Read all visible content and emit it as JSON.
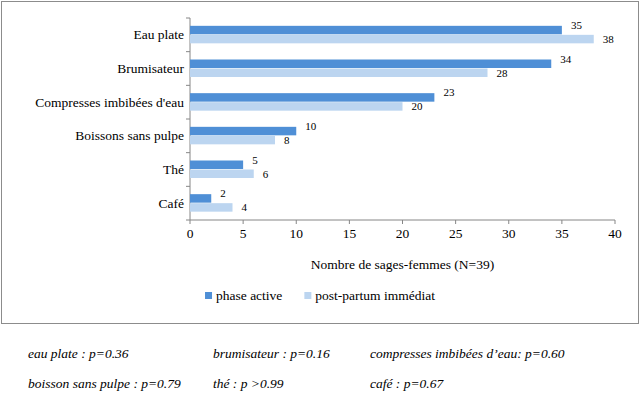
{
  "chart_data": {
    "type": "bar",
    "orientation": "horizontal",
    "x_label": "Nombre de sages-femmes (N=39)",
    "categories": [
      "Eau plate",
      "Brumisateur",
      "Compresses imbibées d'eau",
      "Boissons sans pulpe",
      "Thé",
      "Café"
    ],
    "series": [
      {
        "name": "phase active",
        "color": "#4f8fd6",
        "values": [
          35,
          34,
          23,
          10,
          5,
          2
        ]
      },
      {
        "name": "post-partum immédiat",
        "color": "#bcd5f0",
        "values": [
          38,
          28,
          20,
          8,
          6,
          4
        ]
      }
    ],
    "xlim": [
      0,
      40
    ],
    "xticks": [
      0,
      5,
      10,
      15,
      20,
      25,
      30,
      35,
      40
    ],
    "grid": false,
    "legend": "bottom",
    "data_labels": true,
    "annotations": [
      "eau plate : p=0.36",
      "brumisateur : p=0.16",
      "compresses imbibées d’eau: p=0.60",
      "boisson sans pulpe : p=0.79",
      "thé : p >0.99",
      "café : p=0.67"
    ]
  }
}
